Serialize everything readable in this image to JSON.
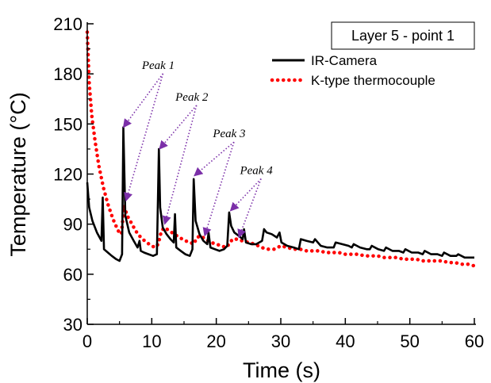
{
  "chart_data": {
    "type": "line",
    "title": "",
    "xlabel": "Time (s)",
    "ylabel": "Temperature (°C)",
    "xlim": [
      0,
      60
    ],
    "ylim": [
      30,
      210
    ],
    "xticks": [
      0,
      10,
      20,
      30,
      40,
      50,
      60
    ],
    "yticks": [
      30,
      60,
      90,
      120,
      150,
      180,
      210
    ],
    "grid": false,
    "legend": {
      "title": "Layer 5 - point 1",
      "placement": "top-right"
    },
    "series": [
      {
        "name": "IR-Camera",
        "color": "#000000",
        "style": "solid",
        "x": [
          0,
          0.3,
          0.8,
          1.5,
          2.2,
          2.4,
          2.6,
          3.2,
          3.8,
          4.5,
          5.0,
          5.4,
          5.6,
          5.9,
          6.5,
          7.2,
          7.8,
          8.1,
          8.3,
          8.8,
          9.5,
          10.2,
          10.8,
          11.1,
          11.3,
          11.7,
          12.3,
          12.9,
          13.4,
          13.6,
          13.8,
          14.5,
          15.2,
          15.9,
          16.3,
          16.5,
          16.8,
          17.4,
          18.0,
          18.6,
          18.8,
          19.1,
          19.8,
          20.5,
          21.2,
          21.7,
          22.0,
          22.3,
          22.8,
          23.5,
          24.1,
          24.3,
          24.6,
          25.4,
          26.2,
          27.1,
          27.4,
          27.8,
          28.6,
          29.4,
          29.8,
          30.1,
          31.0,
          32.0,
          32.8,
          33.1,
          34.0,
          35.0,
          35.3,
          36.2,
          37.2,
          38.2,
          38.5,
          39.5,
          40.5,
          41.0,
          41.3,
          42.3,
          43.3,
          43.8,
          44.1,
          45.1,
          46.0,
          46.3,
          47.3,
          48.3,
          49.0,
          49.3,
          50.3,
          51.3,
          52.0,
          52.3,
          53.3,
          54.3,
          55.0,
          55.3,
          56.3,
          57.2,
          57.5,
          58.5,
          59.5,
          60
        ],
        "y": [
          115,
          100,
          92,
          85,
          80,
          106,
          75,
          73,
          71,
          69,
          68,
          72,
          148,
          95,
          85,
          80,
          76,
          80,
          74,
          73,
          72,
          71,
          72,
          135,
          100,
          88,
          84,
          81,
          79,
          96,
          76,
          74,
          72,
          71,
          75,
          117,
          92,
          84,
          80,
          78,
          85,
          76,
          75,
          74,
          75,
          77,
          97,
          89,
          85,
          83,
          81,
          87,
          79,
          78,
          78,
          80,
          87,
          85,
          84,
          82,
          85,
          79,
          77,
          76,
          75,
          81,
          80,
          79,
          81,
          77,
          76,
          76,
          79,
          78,
          77,
          76,
          78,
          76,
          75,
          75,
          77,
          75,
          74,
          76,
          74,
          74,
          73,
          75,
          73,
          73,
          72,
          74,
          72,
          72,
          71,
          73,
          71,
          71,
          72,
          70,
          70,
          70
        ]
      },
      {
        "name": "K-type thermocouple",
        "color": "#ff0000",
        "style": "dotted",
        "x": [
          0,
          0.3,
          0.7,
          1.2,
          1.8,
          2.5,
          3.2,
          4.0,
          4.8,
          5.3,
          5.7,
          6.2,
          6.8,
          7.5,
          8.3,
          9.2,
          10.0,
          10.5,
          11.0,
          11.5,
          12.0,
          12.7,
          13.5,
          14.3,
          15.2,
          16.0,
          16.5,
          17.0,
          17.6,
          18.3,
          19.2,
          20.0,
          20.8,
          21.5,
          22.0,
          22.5,
          23.2,
          24.0,
          25.0,
          26.0,
          27.0,
          28.0,
          29.0,
          30.0,
          31.0,
          32.0,
          33.0,
          34.0,
          35.0,
          36.0,
          37.0,
          38.0,
          39.0,
          40.0,
          41.0,
          42.0,
          43.0,
          44.0,
          45.0,
          46.0,
          47.0,
          48.0,
          49.0,
          50.0,
          51.0,
          52.0,
          53.0,
          54.0,
          55.0,
          56.0,
          57.0,
          58.0,
          59.0,
          60.0
        ],
        "y": [
          205,
          175,
          155,
          140,
          125,
          112,
          102,
          93,
          86,
          84,
          101,
          95,
          91,
          86,
          82,
          79,
          77,
          76,
          78,
          86,
          88,
          86,
          84,
          82,
          80,
          79,
          78,
          82,
          83,
          81,
          79,
          78,
          77,
          76,
          78,
          81,
          81,
          80,
          79,
          78,
          76,
          75,
          75,
          77,
          76,
          75,
          75,
          74,
          74,
          74,
          73,
          73,
          73,
          72,
          72,
          72,
          71,
          71,
          71,
          70,
          70,
          70,
          69,
          69,
          69,
          68,
          68,
          68,
          68,
          67,
          67,
          66,
          66,
          65
        ]
      }
    ],
    "annotations": [
      {
        "text": "Peak 1",
        "label_at": [
          11.0,
          183
        ],
        "targets": [
          [
            5.6,
            148
          ],
          [
            6.0,
            104
          ]
        ]
      },
      {
        "text": "Peak 2",
        "label_at": [
          16.2,
          164
        ],
        "targets": [
          [
            11.2,
            135
          ],
          [
            12.0,
            90
          ]
        ]
      },
      {
        "text": "Peak 3",
        "label_at": [
          22.0,
          142
        ],
        "targets": [
          [
            16.6,
            119
          ],
          [
            18.2,
            83
          ]
        ]
      },
      {
        "text": "Peak 4",
        "label_at": [
          26.2,
          120
        ],
        "targets": [
          [
            22.2,
            98
          ],
          [
            23.5,
            82
          ]
        ]
      }
    ]
  }
}
